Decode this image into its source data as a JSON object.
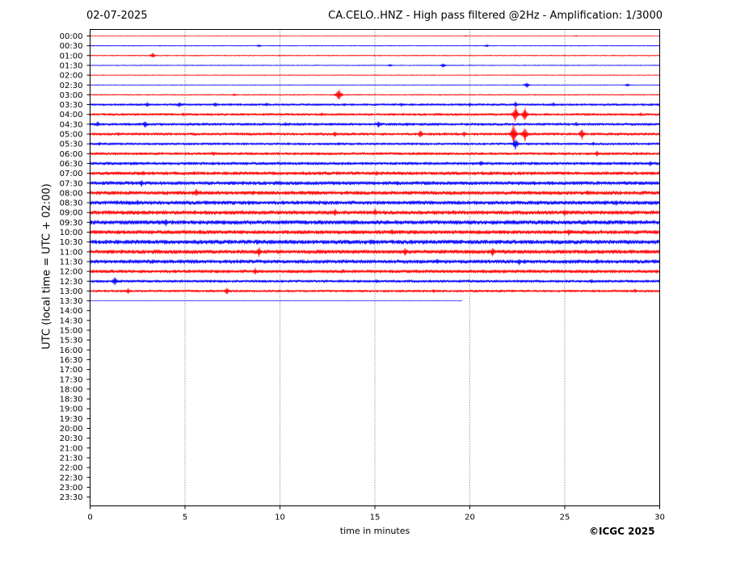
{
  "header": {
    "date": "02-07-2025",
    "title": "CA.CELO..HNZ - High pass filtered @2Hz - Amplification: 1/3000"
  },
  "footer": {
    "copyright": "©ICGC 2025"
  },
  "chart_data": {
    "type": "line",
    "title": "CA.CELO..HNZ - High pass filtered @2Hz - Amplification: 1/3000",
    "xlabel": "time in minutes",
    "ylabel": "UTC (local time = UTC + 02:00)",
    "xlim": [
      0,
      30
    ],
    "x_ticks": [
      0,
      5,
      10,
      15,
      20,
      25,
      30
    ],
    "vertical_gridlines": [
      5,
      10,
      15,
      20,
      25
    ],
    "grid_style": "dotted vertical lines",
    "row_labels": [
      "00:00",
      "00:30",
      "01:00",
      "01:30",
      "02:00",
      "02:30",
      "03:00",
      "03:30",
      "04:00",
      "04:30",
      "05:00",
      "05:30",
      "06:00",
      "06:30",
      "07:00",
      "07:30",
      "08:00",
      "08:30",
      "09:00",
      "09:30",
      "10:00",
      "10:30",
      "11:00",
      "11:30",
      "12:00",
      "12:30",
      "13:00",
      "13:30",
      "14:00",
      "14:30",
      "15:00",
      "15:30",
      "16:00",
      "16:30",
      "17:00",
      "17:30",
      "18:00",
      "18:30",
      "19:00",
      "19:30",
      "20:00",
      "20:30",
      "21:00",
      "21:30",
      "22:00",
      "22:30",
      "23:00",
      "23:30"
    ],
    "trace_colors": [
      "#ff0000",
      "#0000ff"
    ],
    "color_pattern": "alternating by row: red, blue",
    "last_trace": {
      "row": "13:30",
      "end_minute": 19.6
    },
    "traces": [
      {
        "row": "00:00",
        "noise": 0.4,
        "events": [
          {
            "t": 19.8,
            "amp": 1
          },
          {
            "t": 25.6,
            "amp": 1
          }
        ]
      },
      {
        "row": "00:30",
        "noise": 0.6,
        "events": [
          {
            "t": 8.9,
            "amp": 2
          },
          {
            "t": 20.9,
            "amp": 2
          }
        ]
      },
      {
        "row": "01:00",
        "noise": 0.7,
        "events": [
          {
            "t": 3.3,
            "amp": 3.5
          }
        ]
      },
      {
        "row": "01:30",
        "noise": 0.6,
        "events": [
          {
            "t": 15.8,
            "amp": 2
          },
          {
            "t": 18.6,
            "amp": 3
          }
        ]
      },
      {
        "row": "02:00",
        "noise": 0.6,
        "events": []
      },
      {
        "row": "02:30",
        "noise": 0.5,
        "events": [
          {
            "t": 23.0,
            "amp": 4
          },
          {
            "t": 28.3,
            "amp": 2.5
          }
        ]
      },
      {
        "row": "03:00",
        "noise": 0.8,
        "events": [
          {
            "t": 7.6,
            "amp": 2
          },
          {
            "t": 13.1,
            "amp": 9
          }
        ]
      },
      {
        "row": "03:30",
        "noise": 1.5,
        "events": [
          {
            "t": 3.0,
            "amp": 3.5
          },
          {
            "t": 4.7,
            "amp": 4
          },
          {
            "t": 6.6,
            "amp": 3.5
          },
          {
            "t": 9.3,
            "amp": 3
          },
          {
            "t": 13.4,
            "amp": 2.5
          },
          {
            "t": 16.4,
            "amp": 3
          },
          {
            "t": 20.0,
            "amp": 3
          },
          {
            "t": 22.4,
            "amp": 4
          },
          {
            "t": 24.4,
            "amp": 3
          }
        ]
      },
      {
        "row": "04:00",
        "noise": 1.6,
        "events": [
          {
            "t": 4.9,
            "amp": 3
          },
          {
            "t": 12.2,
            "amp": 3
          },
          {
            "t": 22.4,
            "amp": 12
          },
          {
            "t": 22.9,
            "amp": 10
          },
          {
            "t": 29.0,
            "amp": 3
          }
        ]
      },
      {
        "row": "04:30",
        "noise": 1.8,
        "events": [
          {
            "t": 0.4,
            "amp": 4
          },
          {
            "t": 2.9,
            "amp": 5
          },
          {
            "t": 10.3,
            "amp": 3
          },
          {
            "t": 15.2,
            "amp": 4.5
          },
          {
            "t": 16.7,
            "amp": 3
          },
          {
            "t": 25.6,
            "amp": 3
          }
        ]
      },
      {
        "row": "05:00",
        "noise": 1.8,
        "events": [
          {
            "t": 1.5,
            "amp": 3
          },
          {
            "t": 12.9,
            "amp": 4
          },
          {
            "t": 17.4,
            "amp": 6
          },
          {
            "t": 19.7,
            "amp": 4
          },
          {
            "t": 22.3,
            "amp": 14
          },
          {
            "t": 22.9,
            "amp": 11
          },
          {
            "t": 25.9,
            "amp": 8
          }
        ]
      },
      {
        "row": "05:30",
        "noise": 1.6,
        "events": [
          {
            "t": 0.5,
            "amp": 3
          },
          {
            "t": 13.1,
            "amp": 2.5
          },
          {
            "t": 22.4,
            "amp": 9
          },
          {
            "t": 26.5,
            "amp": 3
          }
        ]
      },
      {
        "row": "06:00",
        "noise": 1.8,
        "events": [
          {
            "t": 6.5,
            "amp": 3
          },
          {
            "t": 17.3,
            "amp": 2.5
          },
          {
            "t": 26.7,
            "amp": 4
          }
        ]
      },
      {
        "row": "06:30",
        "noise": 2.0,
        "events": [
          {
            "t": 2.3,
            "amp": 3
          },
          {
            "t": 20.6,
            "amp": 4
          },
          {
            "t": 29.5,
            "amp": 4
          }
        ]
      },
      {
        "row": "07:00",
        "noise": 2.2,
        "events": [
          {
            "t": 2.8,
            "amp": 4
          },
          {
            "t": 15.1,
            "amp": 3.5
          },
          {
            "t": 21.8,
            "amp": 3
          }
        ]
      },
      {
        "row": "07:30",
        "noise": 2.4,
        "events": [
          {
            "t": 2.7,
            "amp": 5
          },
          {
            "t": 13.1,
            "amp": 3
          },
          {
            "t": 16.2,
            "amp": 4
          },
          {
            "t": 23.4,
            "amp": 3.5
          }
        ]
      },
      {
        "row": "08:00",
        "noise": 2.5,
        "events": [
          {
            "t": 5.6,
            "amp": 6
          },
          {
            "t": 8.6,
            "amp": 3.5
          },
          {
            "t": 14.1,
            "amp": 3
          },
          {
            "t": 26.2,
            "amp": 4
          }
        ]
      },
      {
        "row": "08:30",
        "noise": 2.6,
        "events": [
          {
            "t": 2.5,
            "amp": 4
          },
          {
            "t": 8.4,
            "amp": 3.5
          },
          {
            "t": 19.4,
            "amp": 3
          },
          {
            "t": 27.7,
            "amp": 4
          }
        ]
      },
      {
        "row": "09:00",
        "noise": 2.6,
        "events": [
          {
            "t": 4.6,
            "amp": 3
          },
          {
            "t": 12.9,
            "amp": 5
          },
          {
            "t": 15.0,
            "amp": 5.5
          },
          {
            "t": 25.0,
            "amp": 5
          }
        ]
      },
      {
        "row": "09:30",
        "noise": 2.8,
        "events": [
          {
            "t": 4.0,
            "amp": 5
          },
          {
            "t": 13.9,
            "amp": 4
          },
          {
            "t": 22.3,
            "amp": 4
          },
          {
            "t": 28.7,
            "amp": 3.5
          }
        ]
      },
      {
        "row": "10:00",
        "noise": 2.6,
        "events": [
          {
            "t": 5.8,
            "amp": 4
          },
          {
            "t": 13.9,
            "amp": 4
          },
          {
            "t": 15.9,
            "amp": 5
          },
          {
            "t": 25.2,
            "amp": 5
          }
        ]
      },
      {
        "row": "10:30",
        "noise": 2.8,
        "events": [
          {
            "t": 8.8,
            "amp": 4
          },
          {
            "t": 14.8,
            "amp": 4
          },
          {
            "t": 19.5,
            "amp": 3.5
          },
          {
            "t": 26.4,
            "amp": 3
          }
        ]
      },
      {
        "row": "11:00",
        "noise": 2.6,
        "events": [
          {
            "t": 8.9,
            "amp": 7
          },
          {
            "t": 16.6,
            "amp": 6
          },
          {
            "t": 21.2,
            "amp": 7
          },
          {
            "t": 26.1,
            "amp": 4
          }
        ]
      },
      {
        "row": "11:30",
        "noise": 2.5,
        "events": [
          {
            "t": 3.3,
            "amp": 3.5
          },
          {
            "t": 18.3,
            "amp": 4
          },
          {
            "t": 22.6,
            "amp": 5
          },
          {
            "t": 26.7,
            "amp": 4
          }
        ]
      },
      {
        "row": "12:00",
        "noise": 2.2,
        "events": [
          {
            "t": 8.7,
            "amp": 5
          },
          {
            "t": 13.3,
            "amp": 3
          },
          {
            "t": 21.8,
            "amp": 3
          }
        ]
      },
      {
        "row": "12:30",
        "noise": 1.8,
        "events": [
          {
            "t": 1.3,
            "amp": 6
          },
          {
            "t": 15.1,
            "amp": 3
          },
          {
            "t": 26.4,
            "amp": 3
          }
        ]
      },
      {
        "row": "13:00",
        "noise": 1.6,
        "events": [
          {
            "t": 2.0,
            "amp": 4
          },
          {
            "t": 7.2,
            "amp": 5
          },
          {
            "t": 18.1,
            "amp": 3
          },
          {
            "t": 28.7,
            "amp": 3
          }
        ]
      },
      {
        "row": "13:30",
        "noise": 0.3,
        "events": []
      }
    ]
  }
}
